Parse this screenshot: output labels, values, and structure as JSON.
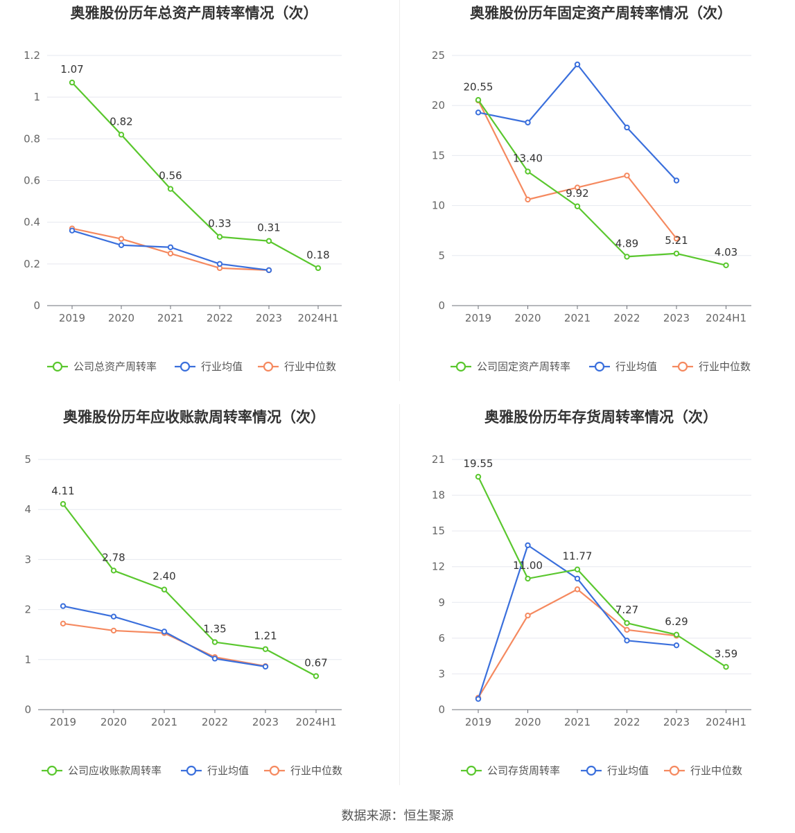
{
  "source_note": "数据来源：恒生聚源",
  "colors": {
    "company": "#5ac72e",
    "avg": "#3a6fdc",
    "median": "#f5895f"
  },
  "chart_data": [
    {
      "type": "line",
      "title": "奥雅股份历年总资产周转率情况（次）",
      "x": [
        "2019",
        "2020",
        "2021",
        "2022",
        "2023",
        "2024H1"
      ],
      "ylim": [
        0,
        1.2
      ],
      "yticks": [
        "0",
        "0.2",
        "0.4",
        "0.6",
        "0.8",
        "1",
        "1.2"
      ],
      "grid": true,
      "legend": "bottom",
      "series": [
        {
          "name": "公司总资产周转率",
          "values": [
            1.07,
            0.82,
            0.56,
            0.33,
            0.31,
            0.18
          ],
          "labels": [
            "1.07",
            "0.82",
            "0.56",
            "0.33",
            "0.31",
            "0.18"
          ]
        },
        {
          "name": "行业均值",
          "values": [
            0.36,
            0.29,
            0.28,
            0.2,
            0.17,
            null
          ]
        },
        {
          "name": "行业中位数",
          "values": [
            0.37,
            0.32,
            0.25,
            0.18,
            0.17,
            null
          ]
        }
      ]
    },
    {
      "type": "line",
      "title": "奥雅股份历年固定资产周转率情况（次）",
      "x": [
        "2019",
        "2020",
        "2021",
        "2022",
        "2023",
        "2024H1"
      ],
      "ylim": [
        0,
        25
      ],
      "yticks": [
        "0",
        "5",
        "10",
        "15",
        "20",
        "25"
      ],
      "grid": true,
      "legend": "bottom",
      "series": [
        {
          "name": "公司固定资产周转率",
          "values": [
            20.55,
            13.4,
            9.92,
            4.89,
            5.21,
            4.03
          ],
          "labels": [
            "20.55",
            "13.40",
            "9.92",
            "4.89",
            "5.21",
            "4.03"
          ]
        },
        {
          "name": "行业均值",
          "values": [
            19.3,
            18.3,
            24.1,
            17.8,
            12.5,
            null
          ]
        },
        {
          "name": "行业中位数",
          "values": [
            20.5,
            10.6,
            11.8,
            13.0,
            6.7,
            null
          ]
        }
      ]
    },
    {
      "type": "line",
      "title": "奥雅股份历年应收账款周转率情况（次）",
      "x": [
        "2019",
        "2020",
        "2021",
        "2022",
        "2023",
        "2024H1"
      ],
      "ylim": [
        0,
        5
      ],
      "yticks": [
        "0",
        "1",
        "2",
        "3",
        "4",
        "5"
      ],
      "grid": true,
      "legend": "bottom",
      "series": [
        {
          "name": "公司应收账款周转率",
          "values": [
            4.11,
            2.78,
            2.4,
            1.35,
            1.21,
            0.67
          ],
          "labels": [
            "4.11",
            "2.78",
            "2.40",
            "1.35",
            "1.21",
            "0.67"
          ]
        },
        {
          "name": "行业均值",
          "values": [
            2.07,
            1.86,
            1.56,
            1.02,
            0.86,
            null
          ]
        },
        {
          "name": "行业中位数",
          "values": [
            1.72,
            1.58,
            1.53,
            1.05,
            0.87,
            null
          ]
        }
      ]
    },
    {
      "type": "line",
      "title": "奥雅股份历年存货周转率情况（次）",
      "x": [
        "2019",
        "2020",
        "2021",
        "2022",
        "2023",
        "2024H1"
      ],
      "ylim": [
        0,
        21
      ],
      "yticks": [
        "0",
        "3",
        "6",
        "9",
        "12",
        "15",
        "18",
        "21"
      ],
      "grid": true,
      "legend": "bottom",
      "series": [
        {
          "name": "公司存货周转率",
          "values": [
            19.55,
            11.0,
            11.77,
            7.27,
            6.29,
            3.59
          ],
          "labels": [
            "19.55",
            "11.00",
            "11.77",
            "7.27",
            "6.29",
            "3.59"
          ]
        },
        {
          "name": "行业均值",
          "values": [
            0.9,
            13.8,
            11.0,
            5.8,
            5.4,
            null
          ]
        },
        {
          "name": "行业中位数",
          "values": [
            1.0,
            7.9,
            10.1,
            6.7,
            6.2,
            null
          ]
        }
      ]
    }
  ]
}
